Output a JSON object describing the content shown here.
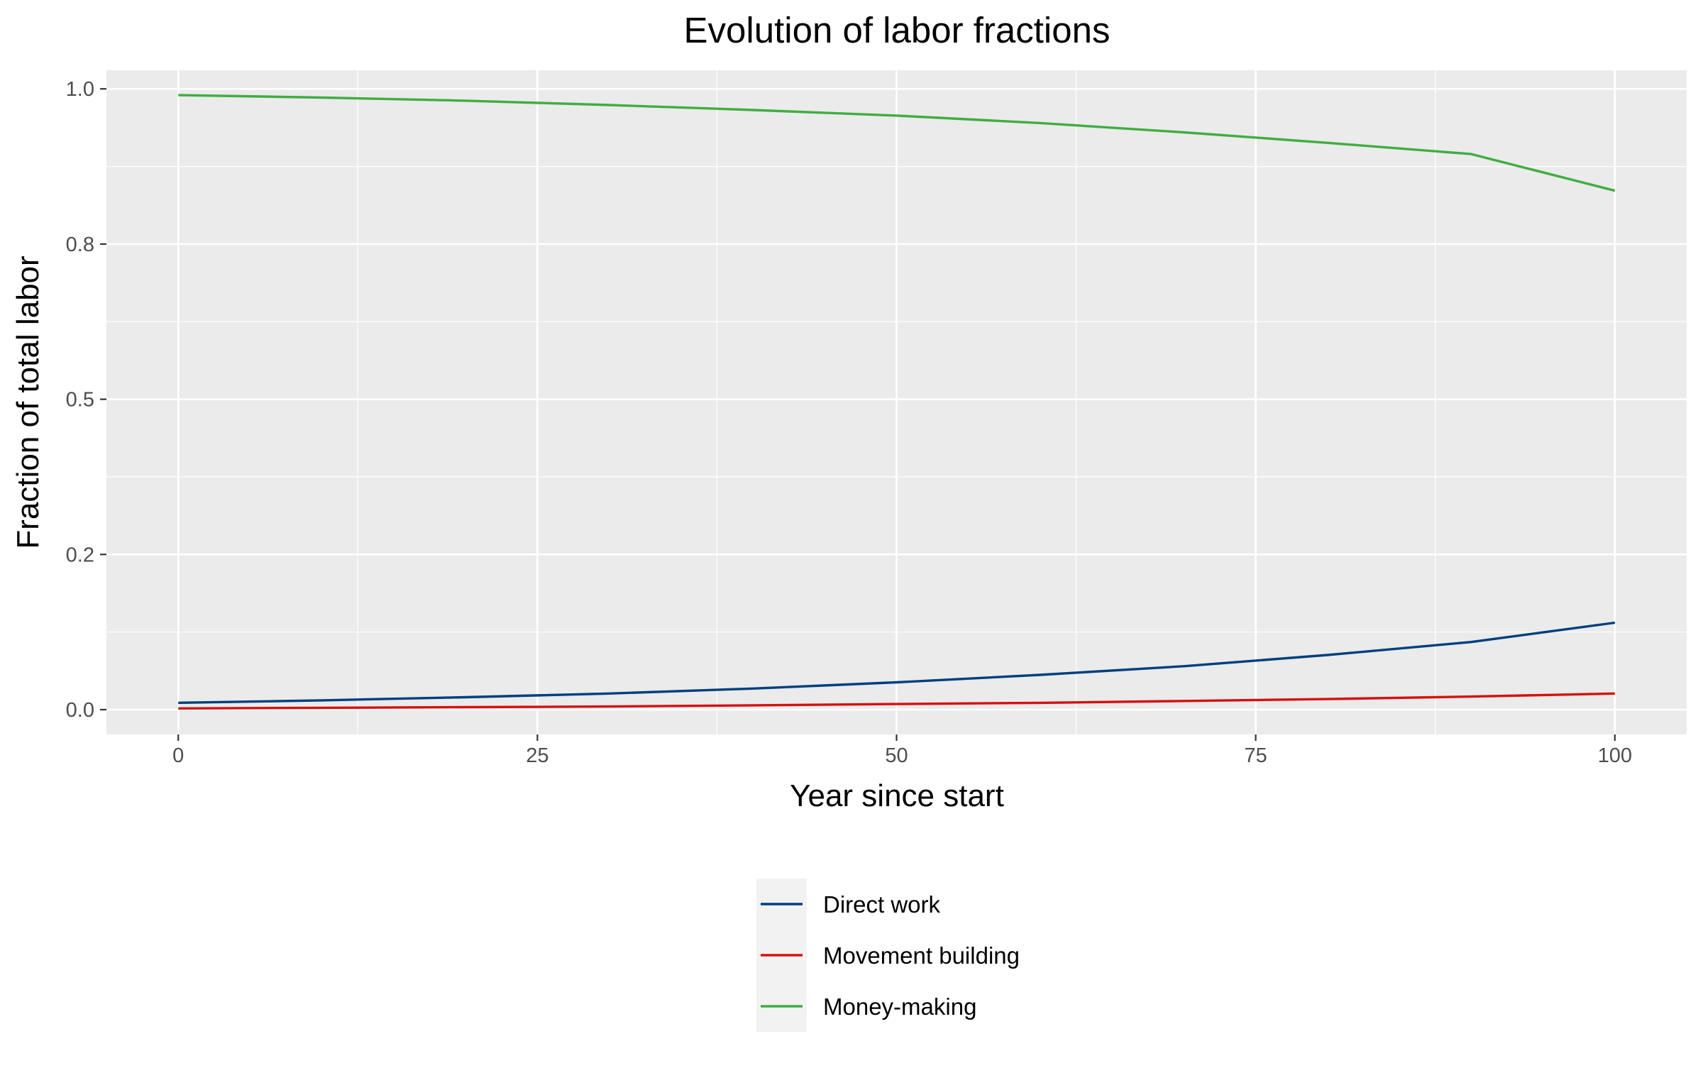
{
  "chart_data": {
    "type": "line",
    "title": "Evolution of labor fractions",
    "xlabel": "Year since start",
    "ylabel": "Fraction of total labor",
    "xlim": [
      -5,
      105
    ],
    "ylim": [
      -0.04,
      1.03
    ],
    "x_ticks": [
      0,
      25,
      50,
      75,
      100
    ],
    "x_tick_labels": [
      "0",
      "25",
      "50",
      "75",
      "100"
    ],
    "y_ticks": [
      0.0,
      0.25,
      0.5,
      0.75,
      1.0
    ],
    "y_tick_labels": [
      "0.0",
      "0.2",
      "0.5",
      "0.8",
      "1.0"
    ],
    "grid": true,
    "legend_position": "bottom",
    "x": [
      0,
      10,
      20,
      30,
      40,
      50,
      60,
      70,
      80,
      90,
      100
    ],
    "series": [
      {
        "name": "Direct work",
        "color": "#003f7f",
        "values": [
          0.011,
          0.015,
          0.02,
          0.026,
          0.034,
          0.044,
          0.056,
          0.07,
          0.088,
          0.109,
          0.14
        ]
      },
      {
        "name": "Movement building",
        "color": "#d7100f",
        "values": [
          0.002,
          0.003,
          0.004,
          0.005,
          0.007,
          0.009,
          0.011,
          0.014,
          0.017,
          0.021,
          0.026
        ]
      },
      {
        "name": "Money-making",
        "color": "#3fae3f",
        "values": [
          0.99,
          0.986,
          0.981,
          0.974,
          0.966,
          0.957,
          0.945,
          0.93,
          0.913,
          0.895,
          0.836
        ]
      }
    ]
  }
}
